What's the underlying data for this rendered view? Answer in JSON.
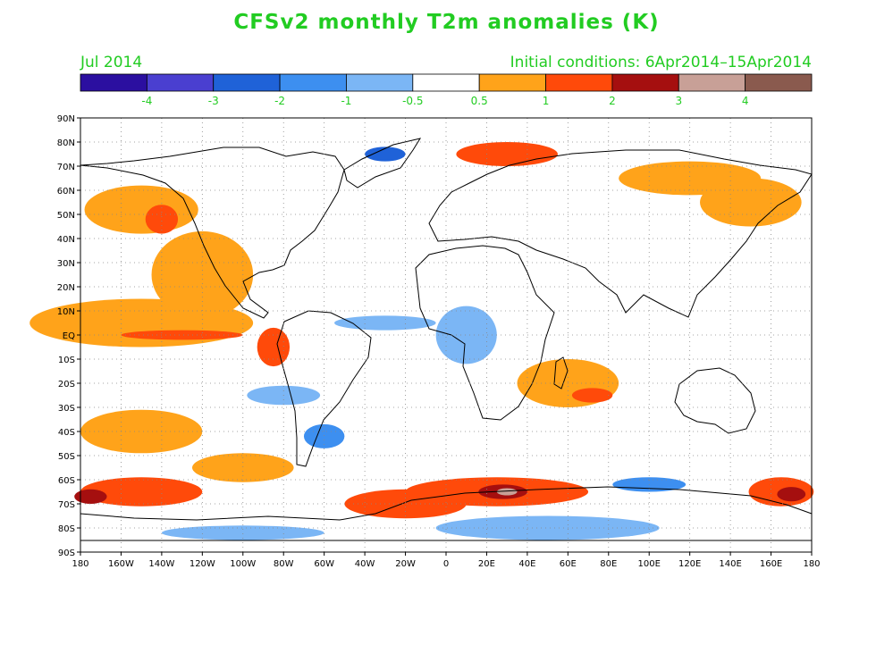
{
  "title": "CFSv2 monthly T2m anomalies (K)",
  "valid_month": "Jul 2014",
  "initial_conditions": "Initial conditions: 6Apr2014–15Apr2014",
  "colorbar": {
    "colors": [
      "#2b0fa0",
      "#4a3fd0",
      "#1f62d8",
      "#3d8ff0",
      "#7bb6f5",
      "#ffffff",
      "#ffa31a",
      "#ff4a0a",
      "#a50f0f",
      "#c8a097",
      "#8a5a4e"
    ],
    "labels": [
      "-4",
      "-3",
      "-2",
      "-1",
      "-0.5",
      "0.5",
      "1",
      "2",
      "3",
      "4"
    ]
  },
  "lat_labels": [
    "90N",
    "80N",
    "70N",
    "60N",
    "50N",
    "40N",
    "30N",
    "20N",
    "10N",
    "EQ",
    "10S",
    "20S",
    "30S",
    "40S",
    "50S",
    "60S",
    "70S",
    "80S",
    "90S"
  ],
  "lon_labels": [
    "180",
    "160W",
    "140W",
    "120W",
    "100W",
    "80W",
    "60W",
    "40W",
    "20W",
    "0",
    "20E",
    "40E",
    "60E",
    "80E",
    "100E",
    "120E",
    "140E",
    "160E",
    "180"
  ],
  "anomaly_regions": [
    {
      "lon": -150,
      "lat": 5,
      "rx": 55,
      "ry": 10,
      "color": "#ffa31a"
    },
    {
      "lon": -120,
      "lat": 25,
      "rx": 25,
      "ry": 18,
      "color": "#ffa31a"
    },
    {
      "lon": -150,
      "lat": 52,
      "rx": 28,
      "ry": 10,
      "color": "#ffa31a"
    },
    {
      "lon": -140,
      "lat": 48,
      "rx": 8,
      "ry": 6,
      "color": "#ff4a0a"
    },
    {
      "lon": -130,
      "lat": 0,
      "rx": 30,
      "ry": 2,
      "color": "#ff4a0a"
    },
    {
      "lon": -85,
      "lat": -5,
      "rx": 8,
      "ry": 8,
      "color": "#ff4a0a"
    },
    {
      "lon": -150,
      "lat": -40,
      "rx": 30,
      "ry": 9,
      "color": "#ffa31a"
    },
    {
      "lon": -150,
      "lat": -65,
      "rx": 30,
      "ry": 6,
      "color": "#ff4a0a"
    },
    {
      "lon": -175,
      "lat": -67,
      "rx": 8,
      "ry": 3,
      "color": "#a50f0f"
    },
    {
      "lon": -100,
      "lat": -55,
      "rx": 25,
      "ry": 6,
      "color": "#ffa31a"
    },
    {
      "lon": -20,
      "lat": -70,
      "rx": 30,
      "ry": 6,
      "color": "#ff4a0a"
    },
    {
      "lon": 25,
      "lat": -65,
      "rx": 45,
      "ry": 6,
      "color": "#ff4a0a"
    },
    {
      "lon": 28,
      "lat": -65,
      "rx": 12,
      "ry": 3,
      "color": "#a50f0f"
    },
    {
      "lon": 30,
      "lat": -65,
      "rx": 5,
      "ry": 1.5,
      "color": "#c8a097"
    },
    {
      "lon": 165,
      "lat": -65,
      "rx": 16,
      "ry": 6,
      "color": "#ff4a0a"
    },
    {
      "lon": 170,
      "lat": -66,
      "rx": 7,
      "ry": 3,
      "color": "#a50f0f"
    },
    {
      "lon": 60,
      "lat": -20,
      "rx": 25,
      "ry": 10,
      "color": "#ffa31a"
    },
    {
      "lon": 72,
      "lat": -25,
      "rx": 10,
      "ry": 3,
      "color": "#ff4a0a"
    },
    {
      "lon": 120,
      "lat": 65,
      "rx": 35,
      "ry": 7,
      "color": "#ffa31a"
    },
    {
      "lon": 150,
      "lat": 55,
      "rx": 25,
      "ry": 10,
      "color": "#ffa31a"
    },
    {
      "lon": 30,
      "lat": 75,
      "rx": 25,
      "ry": 5,
      "color": "#ff4a0a"
    },
    {
      "lon": -60,
      "lat": -42,
      "rx": 10,
      "ry": 5,
      "color": "#3d8ff0"
    },
    {
      "lon": 100,
      "lat": -62,
      "rx": 18,
      "ry": 3,
      "color": "#3d8ff0"
    },
    {
      "lon": 50,
      "lat": -80,
      "rx": 55,
      "ry": 5,
      "color": "#7bb6f5"
    },
    {
      "lon": -30,
      "lat": 5,
      "rx": 25,
      "ry": 3,
      "color": "#7bb6f5"
    },
    {
      "lon": 10,
      "lat": 0,
      "rx": 15,
      "ry": 12,
      "color": "#7bb6f5"
    },
    {
      "lon": -30,
      "lat": 75,
      "rx": 10,
      "ry": 3,
      "color": "#1f62d8"
    },
    {
      "lon": -80,
      "lat": -25,
      "rx": 18,
      "ry": 4,
      "color": "#7bb6f5"
    },
    {
      "lon": -100,
      "lat": -82,
      "rx": 40,
      "ry": 3,
      "color": "#7bb6f5"
    }
  ]
}
